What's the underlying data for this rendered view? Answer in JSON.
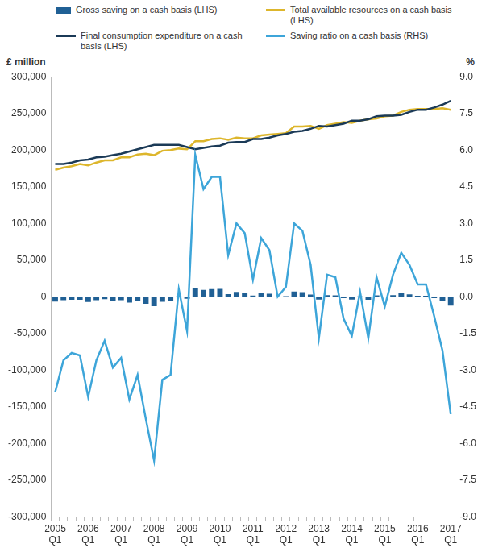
{
  "chart_data": {
    "type": "bar",
    "ylabel": "£ million",
    "y2label": "%",
    "legend": "top",
    "grid": false,
    "categories": [
      "2005 Q1",
      null,
      null,
      null,
      "2006 Q1",
      null,
      null,
      null,
      "2007 Q1",
      null,
      null,
      null,
      "2008 Q1",
      null,
      null,
      null,
      "2009 Q1",
      null,
      null,
      null,
      "2010 Q1",
      null,
      null,
      null,
      "2011 Q1",
      null,
      null,
      null,
      "2012 Q1",
      null,
      null,
      null,
      "2013 Q1",
      null,
      null,
      null,
      "2014 Q1",
      null,
      null,
      null,
      "2015 Q1",
      null,
      null,
      null,
      "2016 Q1",
      null,
      null,
      null,
      "2017 Q1"
    ],
    "ylim": [
      -300000,
      300000
    ],
    "yticks": [
      {
        "value": 300000,
        "label": "300,000"
      },
      {
        "value": 250000,
        "label": "250,000"
      },
      {
        "value": 200000,
        "label": "200,000"
      },
      {
        "value": 150000,
        "label": "150,000"
      },
      {
        "value": 100000,
        "label": "100,000"
      },
      {
        "value": 50000,
        "label": "50,000"
      },
      0,
      {
        "value": -50000,
        "label": "-50,000"
      },
      {
        "value": -100000,
        "label": "-100,000"
      },
      {
        "value": -150000,
        "label": "-150,000"
      },
      {
        "value": -200000,
        "label": "-200,000"
      },
      {
        "value": -250000,
        "label": "-250,000"
      },
      {
        "value": -300000,
        "label": "-300,000"
      }
    ],
    "y2lim": [
      -9,
      9
    ],
    "y2ticks": [
      {
        "value": 9,
        "label": "9.0"
      },
      7.5,
      {
        "value": 6,
        "label": "6.0"
      },
      4.5,
      {
        "value": 3,
        "label": "3.0"
      },
      1.5,
      {
        "value": 0,
        "label": "0.0"
      },
      -1.5,
      {
        "value": -3,
        "label": "-3.0"
      },
      -4.5,
      {
        "value": -6,
        "label": "-6.0"
      },
      -7.5,
      {
        "value": -9,
        "label": "-9.0"
      }
    ],
    "series": [
      {
        "name": "Gross saving on a cash basis (LHS)",
        "type": "bar",
        "color": "#206095",
        "values": [
          -6700,
          -4600,
          -4100,
          -4300,
          -7300,
          -4800,
          -3300,
          -5400,
          -4800,
          -8000,
          -6200,
          -9800,
          -12900,
          -6800,
          -6400,
          600,
          -2800,
          12300,
          9300,
          10500,
          10600,
          3600,
          6500,
          5600,
          1500,
          5300,
          4200,
          0,
          900,
          7000,
          6300,
          3000,
          -3900,
          2100,
          1900,
          -2100,
          -3800,
          500,
          -4100,
          1900,
          -1000,
          2200,
          4500,
          3300,
          1300,
          1300,
          -2000,
          -5700,
          -12200
        ]
      },
      {
        "name": "Total available resources on a cash basis (LHS)",
        "type": "line",
        "color": "#DDB62C",
        "values": [
          173000,
          176000,
          178000,
          181000,
          179000,
          183000,
          186000,
          186000,
          190000,
          190000,
          194000,
          195000,
          193000,
          199000,
          200000,
          202000,
          201000,
          212000,
          212000,
          215000,
          216000,
          214000,
          217000,
          216000,
          216000,
          220000,
          221000,
          222000,
          223000,
          232000,
          232000,
          233000,
          229000,
          234000,
          236000,
          238000,
          237000,
          240000,
          242000,
          243000,
          246000,
          247000,
          252000,
          255000,
          256000,
          256000,
          256000,
          257000,
          255000
        ]
      },
      {
        "name": "Final consumption expenditure on a cash basis (LHS)",
        "type": "line",
        "color": "#1B3A57",
        "values": [
          181000,
          181000,
          183000,
          186000,
          187000,
          190000,
          191000,
          193000,
          195000,
          198000,
          201000,
          204000,
          207000,
          207000,
          207000,
          207000,
          204000,
          201000,
          203000,
          205000,
          206000,
          210000,
          211000,
          211000,
          215000,
          215000,
          217000,
          220000,
          222000,
          225000,
          226000,
          229000,
          233000,
          232000,
          234000,
          236000,
          240000,
          240000,
          242000,
          246000,
          247000,
          247000,
          248000,
          252000,
          255000,
          255000,
          258000,
          262000,
          267000
        ]
      },
      {
        "name": "Saving ratio on a cash basis (RHS)",
        "type": "line",
        "color": "#3DA5D9",
        "axis": "y2",
        "values": [
          -3.9,
          -2.6,
          -2.3,
          -2.4,
          -4.1,
          -2.6,
          -1.8,
          -2.9,
          -2.5,
          -4.2,
          -3.2,
          -5.0,
          -6.7,
          -3.4,
          -3.2,
          0.3,
          -1.4,
          5.8,
          4.4,
          4.9,
          4.9,
          1.7,
          3.0,
          2.6,
          0.7,
          2.4,
          1.9,
          0.0,
          0.4,
          3.0,
          2.7,
          1.3,
          -1.7,
          0.9,
          0.8,
          -0.9,
          -1.6,
          0.2,
          -1.7,
          0.8,
          -0.4,
          0.9,
          1.8,
          1.3,
          0.5,
          0.5,
          -0.8,
          -2.2,
          -4.8
        ]
      }
    ]
  }
}
